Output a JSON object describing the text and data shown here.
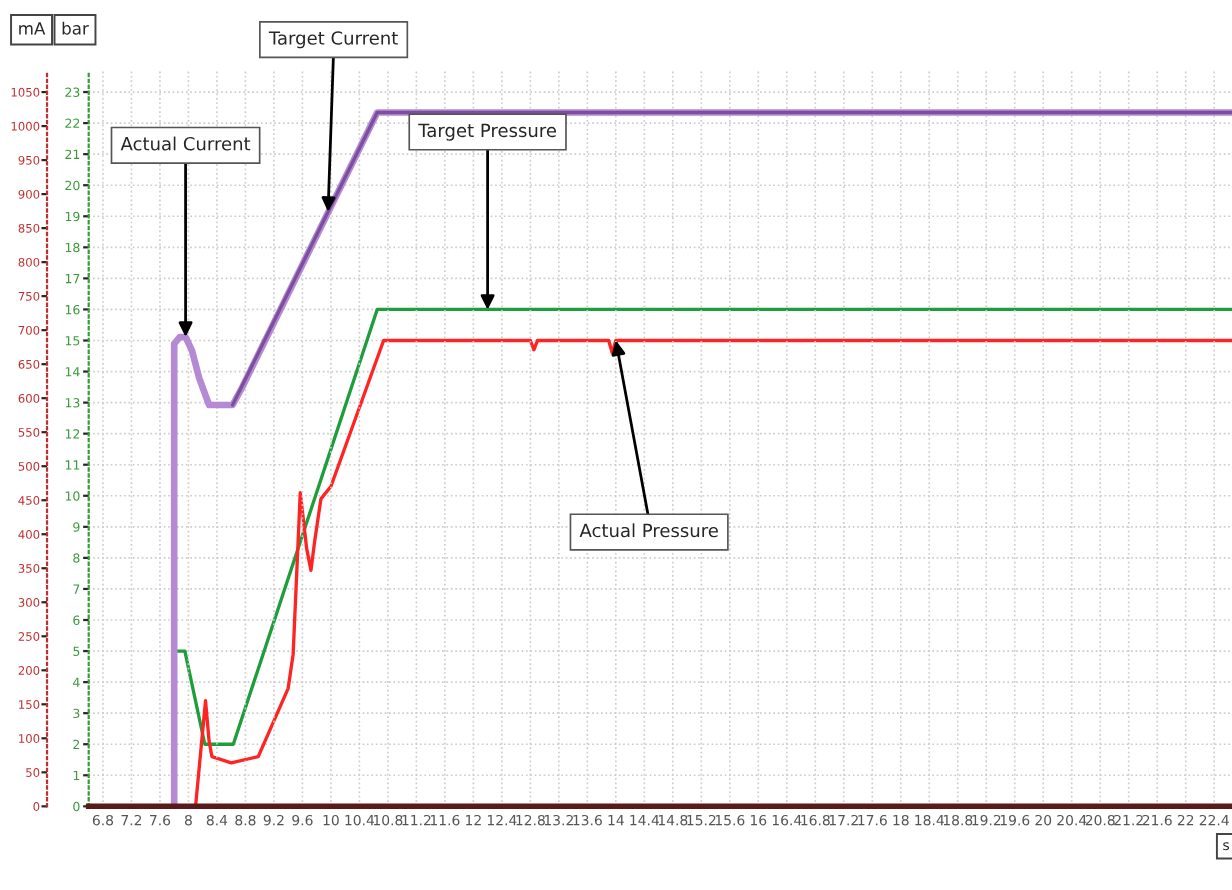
{
  "chart_data": {
    "type": "line",
    "xlabel": "s",
    "ylabel": "mA",
    "y2label": "bar",
    "xlim": [
      6.6,
      22.65
    ],
    "xticks": [
      6.8,
      7.2,
      7.6,
      8,
      8.4,
      8.8,
      9.2,
      9.6,
      10,
      10.4,
      10.8,
      11.2,
      11.6,
      12,
      12.4,
      12.8,
      13.2,
      13.6,
      14,
      14.4,
      14.8,
      15.2,
      15.6,
      16,
      16.4,
      16.8,
      17.2,
      17.6,
      18,
      18.4,
      18.8,
      19.2,
      19.6,
      20,
      20.4,
      20.8,
      21.2,
      21.6,
      22,
      22.4
    ],
    "ylim": [
      0,
      1082
    ],
    "yticks": [
      0,
      50,
      100,
      150,
      200,
      250,
      300,
      350,
      400,
      450,
      500,
      550,
      600,
      650,
      700,
      750,
      800,
      850,
      900,
      950,
      1000,
      1050
    ],
    "y2lim": [
      0,
      23.7
    ],
    "y2ticks": [
      0,
      1,
      2,
      3,
      4,
      5,
      6,
      7,
      8,
      9,
      10,
      11,
      12,
      13,
      14,
      15,
      16,
      17,
      18,
      19,
      20,
      21,
      22,
      23
    ],
    "grid": true,
    "legend": false,
    "series": [
      {
        "color": "#b48ad4",
        "x": [
          7.8,
          7.8,
          7.88,
          7.96,
          8.05,
          8.15,
          8.29,
          8.62,
          8.75,
          10.65,
          22.65
        ],
        "values": [
          0,
          680,
          690,
          690,
          670,
          630,
          590,
          590,
          615,
          1020,
          1020
        ]
      },
      {
        "color": "#7b4f9e",
        "x": [
          8.62,
          10.65,
          22.65
        ],
        "values": [
          590,
          1020,
          1020
        ]
      },
      {
        "color": "#1e9e3a",
        "axis": "y2",
        "x": [
          7.78,
          7.78,
          7.95,
          8.23,
          8.63,
          10.65,
          22.65
        ],
        "values": [
          0,
          5,
          5,
          2,
          2,
          16,
          16
        ]
      },
      {
        "color": "#ff2424",
        "axis": "y2",
        "x": [
          8.1,
          8.24,
          8.29,
          8.33,
          8.6,
          8.98,
          9.4,
          9.47,
          9.57,
          9.66,
          9.72,
          9.77,
          9.86,
          10.0,
          10.74,
          12.8,
          12.85,
          12.9,
          13.9,
          13.95,
          14.0,
          22.65
        ],
        "values": [
          0,
          3.4,
          2.1,
          1.6,
          1.4,
          1.6,
          3.8,
          4.9,
          10.1,
          8.3,
          7.6,
          8.5,
          9.9,
          10.3,
          15,
          15,
          14.7,
          15,
          15,
          14.6,
          15,
          15
        ]
      }
    ],
    "annotations": [
      {
        "text": "Actual Current",
        "x": 7.96,
        "y": 690
      },
      {
        "text": "Target Current",
        "x": 9.96,
        "y": 874
      },
      {
        "text": "Target Pressure",
        "x": 12.2,
        "y": 730
      },
      {
        "text": "Actual Pressure",
        "x": 14.0,
        "y": 685
      }
    ]
  }
}
